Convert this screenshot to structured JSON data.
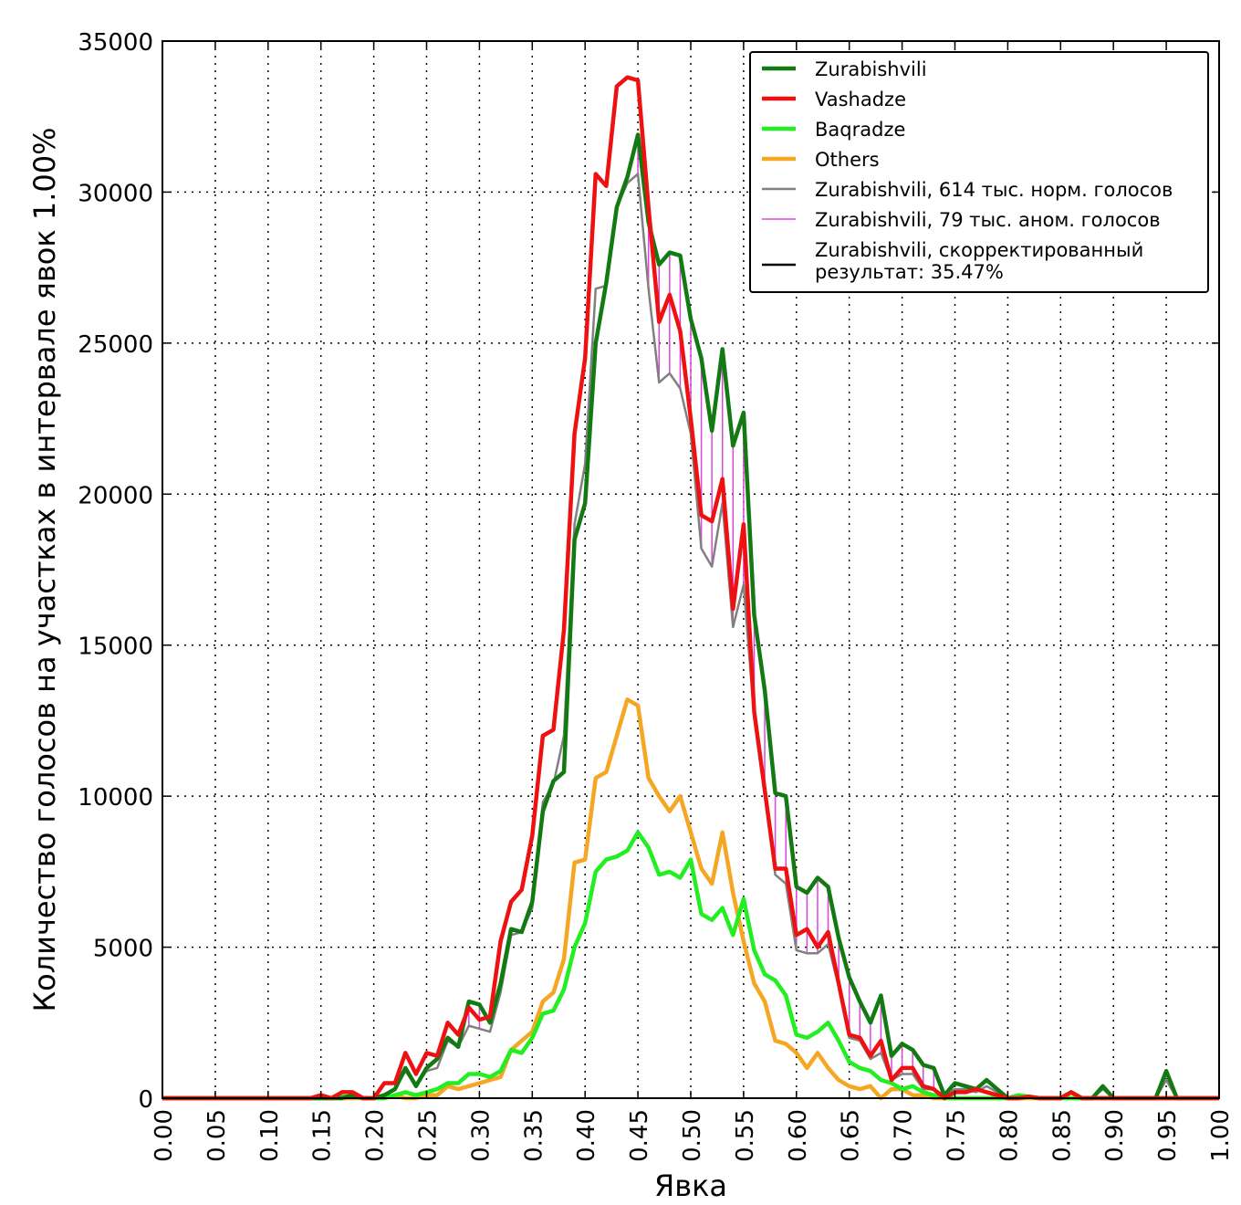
{
  "chart_data": {
    "type": "line",
    "title": "",
    "xlabel": "Явка",
    "ylabel": "Количество голосов на участках в интервале явок 1.00%",
    "xlim": [
      0,
      1
    ],
    "ylim": [
      0,
      35000
    ],
    "grid": true,
    "legend_position": "top-right",
    "x_ticks": [
      "0.00",
      "0.05",
      "0.10",
      "0.15",
      "0.20",
      "0.25",
      "0.30",
      "0.35",
      "0.40",
      "0.45",
      "0.50",
      "0.55",
      "0.60",
      "0.65",
      "0.70",
      "0.75",
      "0.80",
      "0.85",
      "0.90",
      "0.95",
      "1.00"
    ],
    "y_ticks": [
      "0",
      "5000",
      "10000",
      "15000",
      "20000",
      "25000",
      "30000",
      "35000"
    ],
    "x_start": 0.0,
    "x_step": 0.01,
    "series": [
      {
        "name": "Zurabishvili",
        "color": "#137a13",
        "values": [
          0,
          0,
          0,
          0,
          0,
          0,
          0,
          0,
          0,
          0,
          0,
          0,
          0,
          0,
          0,
          0,
          0,
          0,
          100,
          0,
          0,
          100,
          300,
          1000,
          400,
          1000,
          1300,
          2000,
          1700,
          3200,
          3100,
          2500,
          3800,
          5600,
          5500,
          6500,
          9500,
          10500,
          10800,
          18500,
          19700,
          25000,
          27000,
          29500,
          30500,
          31900,
          29000,
          27600,
          28000,
          27900,
          25800,
          24500,
          22100,
          24800,
          21600,
          22700,
          16000,
          13500,
          10100,
          10000,
          7000,
          6800,
          7300,
          7000,
          5300,
          4000,
          3200,
          2500,
          3400,
          1400,
          1800,
          1600,
          1100,
          1000,
          100,
          500,
          400,
          300,
          600,
          300,
          0,
          0,
          50,
          0,
          0,
          0,
          200,
          0,
          0,
          400,
          0,
          0,
          0,
          0,
          0,
          900,
          0,
          0,
          0,
          0,
          0
        ]
      },
      {
        "name": "Vashadze",
        "color": "#ee1111",
        "values": [
          0,
          0,
          0,
          0,
          0,
          0,
          0,
          0,
          0,
          0,
          0,
          0,
          0,
          0,
          0,
          100,
          0,
          200,
          200,
          0,
          0,
          500,
          500,
          1500,
          800,
          1500,
          1400,
          2500,
          2100,
          3000,
          2600,
          2700,
          5200,
          6500,
          6900,
          8700,
          12000,
          12200,
          15500,
          22000,
          24500,
          30600,
          30200,
          33500,
          33800,
          33700,
          29500,
          25700,
          26600,
          25400,
          22500,
          19300,
          19100,
          20500,
          16200,
          19000,
          12800,
          10200,
          7600,
          7600,
          5400,
          5600,
          5000,
          5500,
          3800,
          2100,
          2000,
          1400,
          1900,
          600,
          1000,
          1000,
          400,
          300,
          0,
          200,
          200,
          300,
          200,
          100,
          0,
          0,
          50,
          0,
          0,
          0,
          200,
          0,
          0,
          0,
          0,
          0,
          0,
          0,
          0,
          0,
          0,
          0,
          0,
          0,
          0
        ]
      },
      {
        "name": "Baqradze",
        "color": "#22ee22",
        "values": [
          0,
          0,
          0,
          0,
          0,
          0,
          0,
          0,
          0,
          0,
          0,
          0,
          0,
          0,
          0,
          0,
          0,
          50,
          50,
          0,
          0,
          0,
          100,
          200,
          100,
          200,
          300,
          500,
          500,
          800,
          800,
          700,
          900,
          1600,
          1500,
          2000,
          2800,
          2900,
          3600,
          5000,
          5800,
          7500,
          7900,
          8000,
          8200,
          8800,
          8300,
          7400,
          7500,
          7300,
          7900,
          6100,
          5900,
          6300,
          5400,
          6600,
          4900,
          4100,
          3900,
          3400,
          2100,
          2000,
          2200,
          2500,
          1900,
          1200,
          1000,
          900,
          600,
          500,
          300,
          400,
          200,
          100,
          0,
          0,
          0,
          0,
          0,
          0,
          0,
          100,
          50,
          0,
          0,
          0,
          0,
          0,
          0,
          0,
          0,
          0,
          0,
          0,
          0,
          0,
          0,
          0,
          0,
          0,
          0
        ]
      },
      {
        "name": "Others",
        "color": "#f5a623",
        "values": [
          0,
          0,
          0,
          0,
          0,
          0,
          0,
          0,
          0,
          0,
          0,
          0,
          0,
          0,
          0,
          0,
          0,
          0,
          0,
          0,
          0,
          0,
          100,
          0,
          0,
          100,
          100,
          400,
          300,
          400,
          500,
          600,
          700,
          1600,
          1900,
          2200,
          3200,
          3500,
          4600,
          7800,
          7900,
          10600,
          10800,
          12000,
          13200,
          13000,
          10600,
          10000,
          9500,
          10000,
          8800,
          7600,
          7100,
          8800,
          6800,
          5200,
          3800,
          3200,
          1900,
          1800,
          1500,
          1000,
          1500,
          1000,
          600,
          400,
          300,
          400,
          0,
          300,
          300,
          100,
          100,
          0,
          0,
          0,
          0,
          0,
          0,
          0,
          0,
          0,
          0,
          0,
          0,
          0,
          0,
          0,
          0,
          0,
          0,
          0,
          0,
          0,
          0,
          0,
          0,
          0,
          0,
          0,
          0
        ]
      },
      {
        "name": "Zurabishvili, 614 тыс. норм. голосов",
        "color": "#808080",
        "values": [
          0,
          0,
          0,
          0,
          0,
          0,
          0,
          0,
          0,
          0,
          0,
          0,
          0,
          0,
          0,
          0,
          0,
          0,
          100,
          0,
          0,
          100,
          300,
          900,
          400,
          900,
          1000,
          1900,
          1700,
          2400,
          2300,
          2200,
          3500,
          5400,
          5500,
          6300,
          9800,
          10400,
          12000,
          19000,
          21000,
          26800,
          26900,
          29500,
          30300,
          30600,
          26800,
          23700,
          24000,
          23500,
          22000,
          18200,
          17600,
          19700,
          15600,
          17000,
          12600,
          10000,
          7400,
          7100,
          4900,
          4800,
          4800,
          5100,
          3700,
          2000,
          1900,
          1300,
          1500,
          600,
          800,
          800,
          300,
          300,
          100,
          300,
          300,
          200,
          400,
          200,
          0,
          0,
          50,
          0,
          0,
          0,
          200,
          0,
          0,
          300,
          0,
          0,
          0,
          0,
          0,
          600,
          0,
          0,
          0,
          0,
          0
        ]
      }
    ],
    "anomaly_legend": {
      "name": "Zurabishvili, 79 тыс. аном. голосов",
      "color": "#dd44dd"
    },
    "corrected_legend": {
      "line1": "Zurabishvili, скорректированный",
      "line2": "результат: 35.47%",
      "color": "#000000"
    }
  }
}
